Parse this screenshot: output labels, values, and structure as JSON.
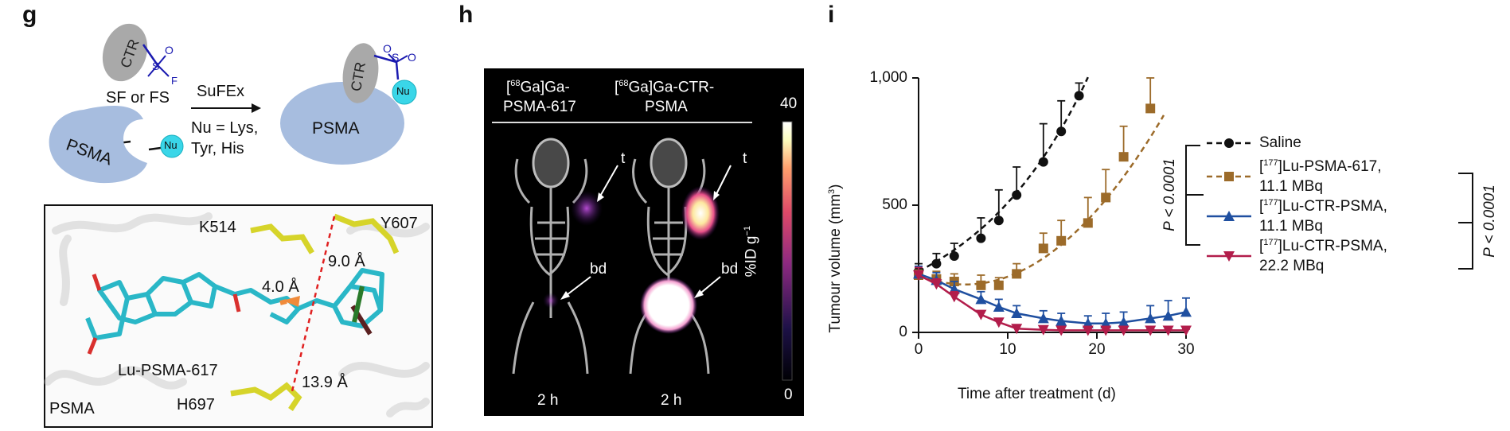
{
  "panels": {
    "g": {
      "letter": "g",
      "ctr_label": "CTR",
      "sf_label": "SF or FS",
      "s_atom": "S",
      "o_atom": "O",
      "f_atom": "F",
      "reaction_label": "SuFEx",
      "nu_condition": [
        "Nu = Lys,",
        "Tyr, His"
      ],
      "psma_label": "PSMA",
      "nu_label": "Nu",
      "structure": {
        "residues": [
          "K514",
          "Y607",
          "H697"
        ],
        "ligand_label": "Lu-PSMA-617",
        "protein_label": "PSMA",
        "distances": [
          "4.0 Å",
          "9.0 Å",
          "13.9 Å"
        ]
      }
    },
    "h": {
      "letter": "h",
      "agent1_sup": "68",
      "agent1_a": "Ga]Ga-",
      "agent1_b": "PSMA-617",
      "agent2_sup": "68",
      "agent2_a": "Ga]Ga-CTR-",
      "agent2_b": "PSMA",
      "colorbar_max": "40",
      "colorbar_min": "0",
      "colorbar_label": "%ID g",
      "colorbar_exp": "−1",
      "tumour_label": "t",
      "bladder_label": "bd",
      "time_labels": [
        "2 h",
        "2 h"
      ]
    },
    "i": {
      "letter": "i"
    }
  },
  "chart_data": {
    "type": "line",
    "xlabel": "Time after treatment (d)",
    "ylabel": "Tumour volume (mm",
    "ylabel_sup": "3",
    "ylabel_end": ")",
    "xlim": [
      0,
      30
    ],
    "ylim": [
      0,
      1000
    ],
    "xticks": [
      0,
      10,
      20,
      30
    ],
    "yticks": [
      0,
      500,
      1000
    ],
    "ytick_labels": [
      "0",
      "500",
      "1,000"
    ],
    "series": [
      {
        "key": "saline",
        "legend": [
          "Saline"
        ],
        "sup": "",
        "color": "#111111",
        "marker": "circle",
        "x": [
          0,
          2,
          4,
          7,
          9,
          11,
          14,
          16,
          18
        ],
        "y": [
          240,
          270,
          300,
          370,
          440,
          540,
          670,
          790,
          930
        ],
        "err": [
          30,
          40,
          50,
          80,
          120,
          110,
          150,
          120,
          50
        ],
        "fit": {
          "type": "exp",
          "from": 0,
          "to": 19,
          "dash": "7,5"
        }
      },
      {
        "key": "psma617",
        "legend": [
          "Lu-PSMA-617,",
          "11.1 MBq"
        ],
        "sup": "177",
        "color": "#9c6b2a",
        "marker": "square",
        "x": [
          0,
          2,
          4,
          7,
          9,
          11,
          14,
          16,
          19,
          21,
          23,
          26
        ],
        "y": [
          225,
          210,
          200,
          185,
          185,
          230,
          330,
          360,
          430,
          530,
          690,
          880
        ],
        "err": [
          20,
          30,
          30,
          40,
          30,
          40,
          60,
          80,
          100,
          110,
          120,
          120
        ],
        "fit": {
          "type": "poly",
          "from": 0,
          "to": 27.5,
          "dash": "7,5"
        }
      },
      {
        "key": "ctr111",
        "legend": [
          "Lu-CTR-PSMA,",
          "11.1 MBq"
        ],
        "sup": "177",
        "color": "#1f4fa0",
        "marker": "triangle",
        "x": [
          0,
          2,
          4,
          7,
          9,
          11,
          14,
          16,
          19,
          21,
          23,
          26,
          28,
          30
        ],
        "y": [
          230,
          205,
          170,
          130,
          100,
          75,
          55,
          45,
          35,
          35,
          40,
          55,
          65,
          80
        ],
        "err": [
          30,
          30,
          30,
          30,
          30,
          30,
          30,
          30,
          30,
          40,
          40,
          50,
          60,
          55
        ],
        "fit": {
          "type": "line",
          "dash": ""
        }
      },
      {
        "key": "ctr222",
        "legend": [
          "Lu-CTR-PSMA,",
          "22.2 MBq"
        ],
        "sup": "177",
        "color": "#b21d4b",
        "marker": "triangle-down",
        "x": [
          0,
          2,
          4,
          7,
          9,
          11,
          14,
          16,
          19,
          21,
          23,
          26,
          28,
          30
        ],
        "y": [
          225,
          190,
          140,
          70,
          40,
          15,
          10,
          8,
          8,
          8,
          8,
          8,
          8,
          8
        ],
        "err": [
          30,
          20,
          20,
          15,
          10,
          8,
          8,
          8,
          5,
          5,
          5,
          5,
          5,
          5
        ],
        "fit": {
          "type": "line",
          "dash": ""
        }
      }
    ],
    "stats": [
      "P < 0.0001",
      "P < 0.0001"
    ],
    "grid": false,
    "legend_position": "right"
  }
}
